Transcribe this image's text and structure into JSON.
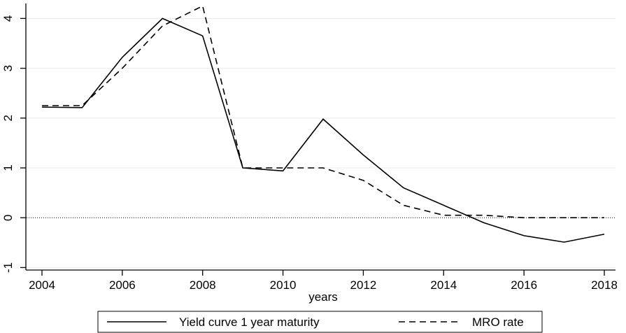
{
  "chart_data": {
    "type": "line",
    "title": "",
    "xlabel": "years",
    "ylabel": "",
    "x": [
      2004,
      2005,
      2006,
      2007,
      2008,
      2009,
      2010,
      2011,
      2012,
      2013,
      2014,
      2015,
      2016,
      2017,
      2018
    ],
    "xticks": [
      2004,
      2006,
      2008,
      2010,
      2012,
      2014,
      2016,
      2018
    ],
    "xtick_labels": [
      "2004",
      "2006",
      "2008",
      "2010",
      "2012",
      "2014",
      "2016",
      "2018"
    ],
    "yticks": [
      -1,
      0,
      1,
      2,
      3,
      4
    ],
    "ytick_labels": [
      "-1",
      "0",
      "1",
      "2",
      "3",
      "4"
    ],
    "xlim": [
      2004,
      2018
    ],
    "ylim": [
      -1.05,
      4.3
    ],
    "grid": true,
    "reference_line_y": 0,
    "legend_position": "bottom",
    "series": [
      {
        "name": "Yield curve 1 year maturity",
        "style": "solid",
        "color": "#000000",
        "values": [
          2.22,
          2.21,
          3.22,
          4.0,
          3.65,
          1.0,
          0.94,
          1.98,
          1.26,
          0.6,
          0.25,
          -0.1,
          -0.36,
          -0.49,
          -0.33
        ]
      },
      {
        "name": "MRO rate",
        "style": "dashed",
        "color": "#000000",
        "values": [
          2.25,
          2.25,
          3.0,
          3.85,
          4.25,
          1.0,
          1.0,
          1.0,
          0.75,
          0.25,
          0.05,
          0.05,
          0.0,
          0.0,
          0.0
        ]
      }
    ]
  }
}
